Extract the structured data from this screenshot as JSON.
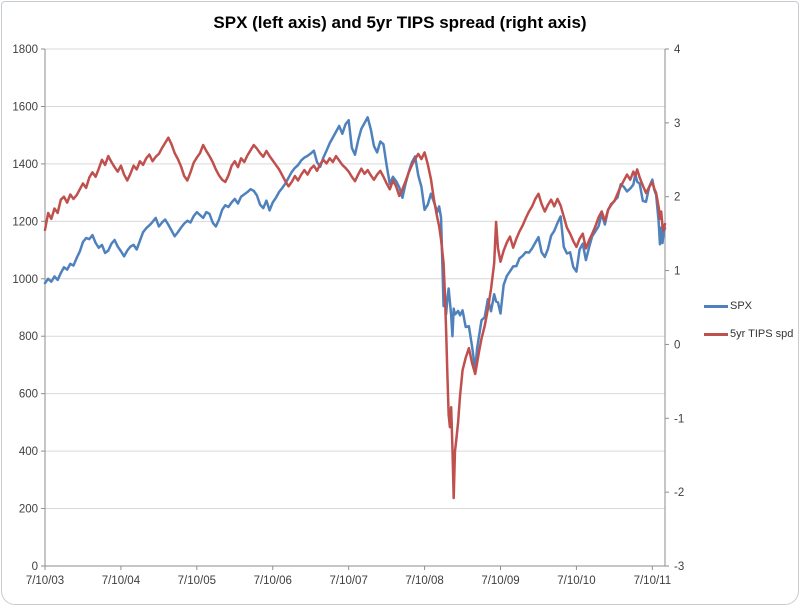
{
  "chart_data": {
    "type": "line",
    "title": "SPX (left axis) and 5yr TIPS spread (right axis)",
    "legend_position": "right",
    "grid": "horizontal",
    "legend": [
      {
        "name": "SPX",
        "color": "#4F81BD"
      },
      {
        "name": "5yr TIPS spd",
        "color": "#C0504D"
      }
    ],
    "x_axis": {
      "tick_labels": [
        "7/10/03",
        "7/10/04",
        "7/10/05",
        "7/10/06",
        "7/10/07",
        "7/10/08",
        "7/10/09",
        "7/10/10",
        "7/10/11"
      ],
      "tick_interval_months": 12,
      "total_months": 98
    },
    "left_axis": {
      "range": [
        0,
        1800
      ],
      "ticks": [
        1800,
        1600,
        1400,
        1200,
        1000,
        800,
        600,
        400,
        200,
        0
      ]
    },
    "right_axis": {
      "range": [
        -3,
        4
      ],
      "ticks": [
        4,
        3,
        2,
        1,
        0,
        -1,
        -2,
        -3
      ]
    },
    "x_months": [
      0,
      0.5,
      1,
      1.5,
      2,
      2.5,
      3,
      3.5,
      4,
      4.5,
      5,
      5.5,
      6,
      6.5,
      7,
      7.5,
      8,
      8.5,
      9,
      9.5,
      10,
      10.5,
      11,
      11.5,
      12,
      12.5,
      13,
      13.5,
      14,
      14.5,
      15,
      15.5,
      16,
      16.5,
      17,
      17.5,
      18,
      18.5,
      19,
      19.5,
      20,
      20.5,
      21,
      21.5,
      22,
      22.5,
      23,
      23.5,
      24,
      24.5,
      25,
      25.5,
      26,
      26.5,
      27,
      27.5,
      28,
      28.5,
      29,
      29.5,
      30,
      30.5,
      31,
      31.5,
      32,
      32.5,
      33,
      33.5,
      34,
      34.5,
      35,
      35.5,
      36,
      36.5,
      37,
      37.5,
      38,
      38.5,
      39,
      39.5,
      40,
      40.5,
      41,
      41.5,
      42,
      42.5,
      43,
      43.5,
      44,
      44.5,
      45,
      45.5,
      46,
      46.5,
      47,
      47.5,
      48,
      48.5,
      49,
      49.5,
      50,
      50.5,
      51,
      51.5,
      52,
      52.5,
      53,
      53.5,
      54,
      54.5,
      55,
      55.5,
      56,
      56.5,
      57,
      57.5,
      58,
      58.5,
      59,
      59.5,
      60,
      60.5,
      61,
      61.5,
      62,
      62.3,
      62.6,
      63,
      63.2,
      63.4,
      63.6,
      63.8,
      64,
      64.2,
      64.4,
      64.6,
      64.8,
      65,
      65.3,
      65.6,
      66,
      66.5,
      67,
      67.5,
      68,
      68.3,
      68.6,
      69,
      69.5,
      70,
      70.5,
      71,
      71.3,
      71.6,
      72,
      72.5,
      73,
      73.5,
      74,
      74.5,
      75,
      75.5,
      76,
      76.5,
      77,
      77.5,
      78,
      78.5,
      79,
      79.5,
      80,
      80.5,
      81,
      81.5,
      82,
      82.5,
      83,
      83.5,
      84,
      84.5,
      85,
      85.5,
      86,
      86.5,
      87,
      87.5,
      88,
      88.5,
      89,
      89.5,
      90,
      90.5,
      91,
      91.5,
      92,
      92.5,
      93,
      93.3,
      93.6,
      94,
      94.5,
      95,
      95.5,
      96,
      96.3,
      96.6,
      97,
      97.2,
      97.4,
      97.6,
      97.8,
      98
    ],
    "series": [
      {
        "name": "SPX",
        "axis": "left",
        "color": "#4F81BD",
        "values": [
          985,
          1000,
          990,
          1008,
          996,
          1020,
          1040,
          1032,
          1052,
          1046,
          1072,
          1095,
          1128,
          1142,
          1138,
          1152,
          1125,
          1108,
          1118,
          1090,
          1098,
          1122,
          1135,
          1112,
          1096,
          1078,
          1098,
          1112,
          1118,
          1102,
          1132,
          1162,
          1176,
          1186,
          1198,
          1212,
          1182,
          1196,
          1206,
          1188,
          1168,
          1148,
          1162,
          1178,
          1192,
          1202,
          1196,
          1218,
          1232,
          1222,
          1212,
          1232,
          1226,
          1196,
          1182,
          1206,
          1240,
          1256,
          1250,
          1266,
          1278,
          1262,
          1286,
          1294,
          1302,
          1312,
          1306,
          1290,
          1258,
          1246,
          1272,
          1238,
          1266,
          1282,
          1302,
          1316,
          1332,
          1352,
          1372,
          1386,
          1396,
          1412,
          1422,
          1428,
          1436,
          1446,
          1406,
          1390,
          1422,
          1446,
          1472,
          1492,
          1512,
          1532,
          1505,
          1538,
          1552,
          1456,
          1432,
          1482,
          1522,
          1542,
          1562,
          1520,
          1462,
          1440,
          1478,
          1468,
          1395,
          1330,
          1355,
          1340,
          1318,
          1282,
          1332,
          1372,
          1406,
          1426,
          1360,
          1320,
          1240,
          1258,
          1296,
          1266,
          1232,
          1252,
          1213,
          905,
          940,
          877,
          930,
          966,
          920,
          873,
          800,
          896,
          876,
          880,
          888,
          873,
          890,
          832,
          835,
          765,
          683,
          757,
          800,
          856,
          866,
          929,
          887,
          946,
          921,
          918,
          879,
          979,
          1010,
          1026,
          1043,
          1044,
          1071,
          1080,
          1093,
          1091,
          1106,
          1126,
          1145,
          1092,
          1076,
          1104,
          1150,
          1167,
          1194,
          1217,
          1111,
          1088,
          1092,
          1041,
          1025,
          1102,
          1122,
          1065,
          1109,
          1149,
          1165,
          1183,
          1226,
          1189,
          1240,
          1257,
          1272,
          1283,
          1329,
          1320,
          1304,
          1314,
          1328,
          1364,
          1338,
          1331,
          1271,
          1268,
          1320,
          1345,
          1310,
          1292,
          1199,
          1120,
          1178,
          1124,
          1162,
          1176
        ]
      },
      {
        "name": "5yr TIPS spd",
        "axis": "right",
        "color": "#C0504D",
        "values": [
          1.55,
          1.78,
          1.7,
          1.84,
          1.78,
          1.96,
          2.0,
          1.92,
          2.03,
          1.97,
          2.02,
          2.1,
          2.18,
          2.12,
          2.26,
          2.33,
          2.27,
          2.38,
          2.5,
          2.43,
          2.55,
          2.47,
          2.4,
          2.34,
          2.42,
          2.3,
          2.22,
          2.31,
          2.42,
          2.37,
          2.48,
          2.43,
          2.52,
          2.57,
          2.48,
          2.54,
          2.58,
          2.66,
          2.73,
          2.8,
          2.71,
          2.59,
          2.51,
          2.41,
          2.28,
          2.22,
          2.33,
          2.46,
          2.53,
          2.59,
          2.7,
          2.62,
          2.55,
          2.47,
          2.37,
          2.29,
          2.23,
          2.2,
          2.29,
          2.42,
          2.48,
          2.4,
          2.52,
          2.47,
          2.56,
          2.63,
          2.7,
          2.65,
          2.59,
          2.54,
          2.62,
          2.55,
          2.49,
          2.43,
          2.37,
          2.29,
          2.21,
          2.14,
          2.2,
          2.28,
          2.22,
          2.3,
          2.36,
          2.3,
          2.38,
          2.42,
          2.35,
          2.44,
          2.5,
          2.45,
          2.52,
          2.47,
          2.55,
          2.49,
          2.43,
          2.39,
          2.34,
          2.27,
          2.21,
          2.3,
          2.38,
          2.31,
          2.36,
          2.29,
          2.23,
          2.3,
          2.35,
          2.27,
          2.18,
          2.1,
          2.22,
          2.14,
          2.01,
          2.1,
          2.21,
          2.33,
          2.43,
          2.51,
          2.58,
          2.51,
          2.6,
          2.44,
          2.24,
          1.95,
          1.72,
          1.6,
          1.42,
          1.1,
          0.7,
          0.2,
          -0.4,
          -0.95,
          -1.12,
          -0.85,
          -1.4,
          -2.08,
          -1.45,
          -1.3,
          -1.05,
          -0.7,
          -0.35,
          -0.18,
          -0.05,
          -0.25,
          -0.4,
          -0.25,
          -0.1,
          0.08,
          0.25,
          0.48,
          0.75,
          1.1,
          1.66,
          1.3,
          1.12,
          1.27,
          1.38,
          1.46,
          1.31,
          1.43,
          1.53,
          1.61,
          1.71,
          1.8,
          1.87,
          1.97,
          2.04,
          1.9,
          1.8,
          1.89,
          1.96,
          1.87,
          1.97,
          1.88,
          1.73,
          1.58,
          1.5,
          1.4,
          1.32,
          1.43,
          1.5,
          1.3,
          1.41,
          1.5,
          1.6,
          1.72,
          1.8,
          1.67,
          1.82,
          1.9,
          1.94,
          2.04,
          2.14,
          2.22,
          2.3,
          2.23,
          2.34,
          2.28,
          2.37,
          2.26,
          2.15,
          2.05,
          2.13,
          2.2,
          2.11,
          2.05,
          1.86,
          1.7,
          1.8,
          1.6,
          1.54,
          1.63
        ]
      }
    ],
    "style": {
      "gridline_color": "#d9d9d9",
      "axis_color": "#8e8e8e",
      "tick_text_color": "#3f3f3f",
      "background": "#ffffff"
    }
  }
}
